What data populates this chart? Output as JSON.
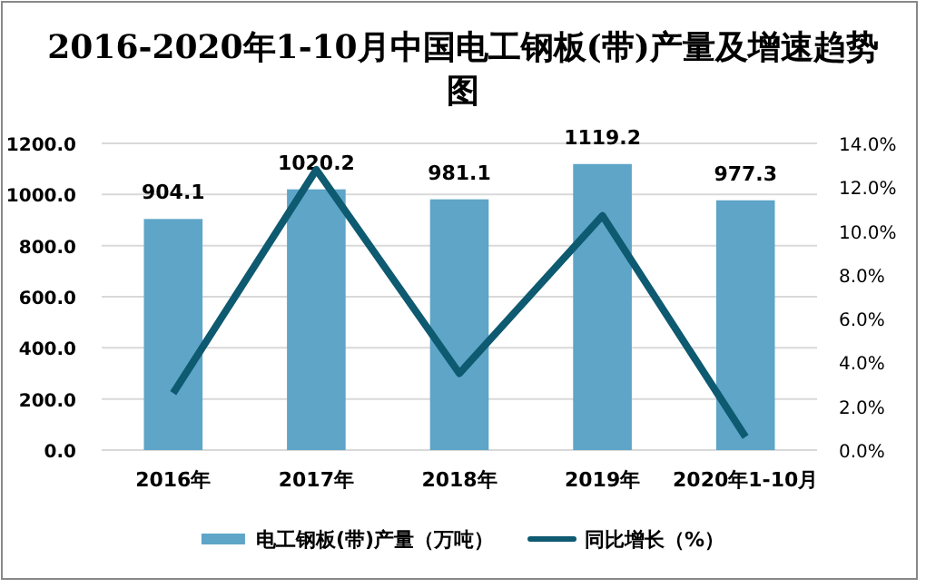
{
  "chart_data": {
    "type": "bar",
    "title": "2016-2020年1-10月中国电工钢板(带)产量及增速趋势图",
    "categories": [
      "2016年",
      "2017年",
      "2018年",
      "2019年",
      "2020年1-10月"
    ],
    "series": [
      {
        "name": "电工钢板(带)产量（万吨）",
        "color": "#5ea5c8",
        "values": [
          904.1,
          1020.2,
          981.1,
          1119.2,
          977.3
        ],
        "value_labels": [
          "904.1",
          "1020.2",
          "981.1",
          "1119.2",
          "977.3"
        ]
      },
      {
        "name": "同比增长（%）",
        "type": "line",
        "axis": "y2",
        "color": "#0e5a70",
        "values": [
          2.6,
          12.8,
          3.5,
          10.7,
          0.6
        ]
      }
    ],
    "ylim": [
      0,
      1200
    ],
    "yticks": [
      {
        "value": 0,
        "label": "0.0"
      },
      {
        "value": 200,
        "label": "200.0"
      },
      {
        "value": 400,
        "label": "400.0"
      },
      {
        "value": 600,
        "label": "600.0"
      },
      {
        "value": 800,
        "label": "800.0"
      },
      {
        "value": 1000,
        "label": "1000.0"
      },
      {
        "value": 1200,
        "label": "1200.0"
      }
    ],
    "y2lim": [
      0,
      14
    ],
    "y2ticks": [
      {
        "value": 0,
        "label": "0.0%"
      },
      {
        "value": 2,
        "label": "2.0%"
      },
      {
        "value": 4,
        "label": "4.0%"
      },
      {
        "value": 6,
        "label": "6.0%"
      },
      {
        "value": 8,
        "label": "8.0%"
      },
      {
        "value": 10,
        "label": "10.0%"
      },
      {
        "value": 12,
        "label": "12.0%"
      },
      {
        "value": 14,
        "label": "14.0%"
      }
    ],
    "grid": "y",
    "legend": "bottom",
    "marker": "none",
    "line_style": "solid"
  }
}
